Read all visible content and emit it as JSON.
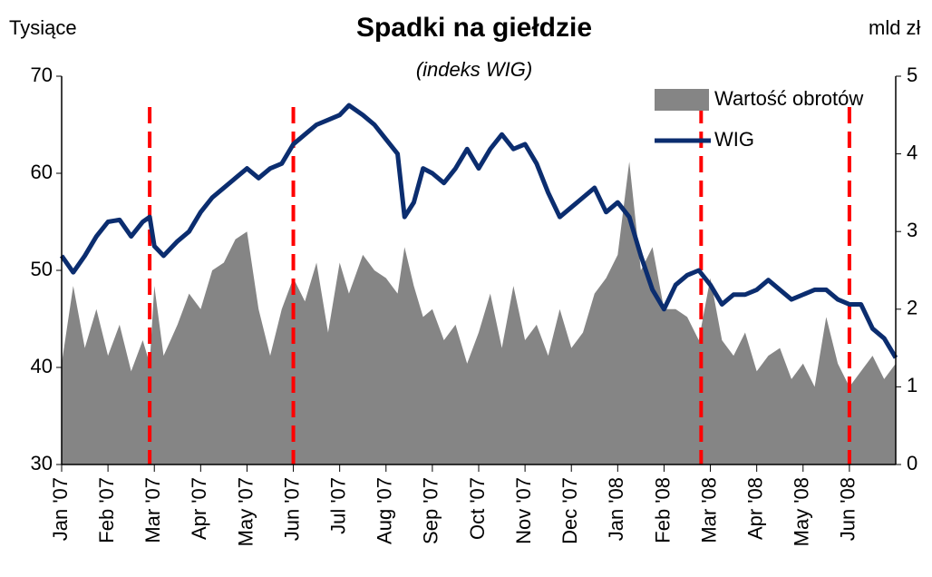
{
  "chart_data": {
    "type": "area_line",
    "title": "Spadki na giełdzie",
    "subtitle": "(indeks WIG)",
    "ylabel": "Tysiące",
    "y2label": "mld zł",
    "x": [
      0,
      0.25,
      0.5,
      0.75,
      1,
      1.25,
      1.5,
      1.75,
      1.9,
      2,
      2.2,
      2.5,
      2.75,
      3,
      3.25,
      3.5,
      3.75,
      4,
      4.25,
      4.5,
      4.75,
      5,
      5.25,
      5.5,
      5.75,
      6,
      6.2,
      6.5,
      6.75,
      7,
      7.25,
      7.4,
      7.6,
      7.8,
      8,
      8.25,
      8.5,
      8.75,
      9,
      9.25,
      9.5,
      9.75,
      10,
      10.25,
      10.5,
      10.75,
      11,
      11.25,
      11.5,
      11.75,
      12,
      12.25,
      12.5,
      12.75,
      13,
      13.25,
      13.5,
      13.75,
      14,
      14.25,
      14.5,
      14.75,
      15,
      15.25,
      15.5,
      15.75,
      16,
      16.25,
      16.5,
      16.75,
      17,
      17.25,
      17.5,
      17.75,
      18
    ],
    "series": [
      {
        "name": "Wartość obrotów",
        "color": "#858585",
        "axis": "y2",
        "kind": "area",
        "values": [
          1.3,
          2.3,
          1.5,
          2.0,
          1.4,
          1.8,
          1.2,
          1.6,
          1.3,
          2.3,
          1.4,
          1.8,
          2.2,
          2.0,
          2.5,
          2.6,
          2.9,
          3.0,
          2.0,
          1.4,
          2.0,
          2.4,
          2.1,
          2.6,
          1.7,
          2.6,
          2.2,
          2.7,
          2.5,
          2.4,
          2.2,
          2.8,
          2.3,
          1.9,
          2.0,
          1.6,
          1.8,
          1.3,
          1.7,
          2.2,
          1.5,
          2.3,
          1.6,
          1.8,
          1.4,
          2.0,
          1.5,
          1.7,
          2.2,
          2.4,
          2.7,
          3.9,
          2.5,
          2.8,
          2.0,
          2.0,
          1.9,
          1.6,
          2.4,
          1.6,
          1.4,
          1.7,
          1.2,
          1.4,
          1.5,
          1.1,
          1.3,
          1.0,
          1.9,
          1.3,
          1.0,
          1.2,
          1.4,
          1.1,
          1.3
        ]
      },
      {
        "name": "WIG",
        "color": "#0b2d6f",
        "axis": "y",
        "kind": "line",
        "values": [
          51.5,
          49.8,
          51.5,
          53.5,
          55.0,
          55.2,
          53.5,
          55.0,
          55.5,
          52.5,
          51.5,
          53.0,
          54.0,
          56.0,
          57.5,
          58.5,
          59.5,
          60.5,
          59.5,
          60.5,
          61.0,
          63.0,
          64.0,
          65.0,
          65.5,
          66.0,
          67.0,
          66.0,
          65.0,
          63.5,
          62.0,
          55.5,
          57.0,
          60.5,
          60.0,
          59.0,
          60.5,
          62.5,
          60.5,
          62.5,
          64.0,
          62.5,
          63.0,
          61.0,
          58.0,
          55.5,
          56.5,
          57.5,
          58.5,
          56.0,
          57.0,
          55.5,
          51.5,
          48.0,
          46.0,
          48.5,
          49.5,
          50.0,
          48.5,
          46.5,
          47.5,
          47.5,
          48.0,
          49.0,
          48.0,
          47.0,
          47.5,
          48.0,
          48.0,
          47.0,
          46.5,
          46.5,
          44.0,
          43.0,
          41.0
        ]
      }
    ],
    "xlim": [
      0,
      18
    ],
    "xticks": [
      {
        "value": 0,
        "label": "Jan '07"
      },
      {
        "value": 1,
        "label": "Feb '07"
      },
      {
        "value": 2,
        "label": "Mar '07"
      },
      {
        "value": 3,
        "label": "Apr '07"
      },
      {
        "value": 4,
        "label": "May '07"
      },
      {
        "value": 5,
        "label": "Jun '07"
      },
      {
        "value": 6,
        "label": "Jul '07"
      },
      {
        "value": 7,
        "label": "Aug '07"
      },
      {
        "value": 8,
        "label": "Sep '07"
      },
      {
        "value": 9,
        "label": "Oct '07"
      },
      {
        "value": 10,
        "label": "Nov '07"
      },
      {
        "value": 11,
        "label": "Dec '07"
      },
      {
        "value": 12,
        "label": "Jan '08"
      },
      {
        "value": 13,
        "label": "Feb '08"
      },
      {
        "value": 14,
        "label": "Mar '08"
      },
      {
        "value": 15,
        "label": "Apr '08"
      },
      {
        "value": 16,
        "label": "May '08"
      },
      {
        "value": 17,
        "label": "Jun '08"
      }
    ],
    "ylim": [
      30,
      70
    ],
    "yticks": [
      30,
      40,
      50,
      60,
      70
    ],
    "y2lim": [
      0,
      5
    ],
    "y2ticks": [
      0,
      1,
      2,
      3,
      4,
      5
    ],
    "reference_lines": {
      "color": "#ff0000",
      "x": [
        1.9,
        5,
        13.8,
        17
      ]
    },
    "legend": "upper right",
    "grid": false
  }
}
